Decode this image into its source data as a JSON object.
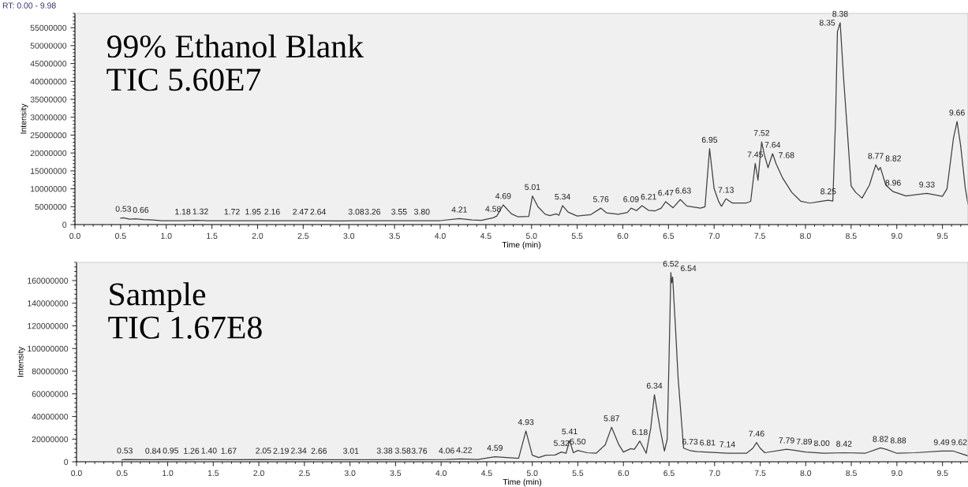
{
  "chart_data": [
    {
      "type": "line",
      "ylabel": "Intensity",
      "xlabel": "Time (min)",
      "grid": false,
      "marker": "none",
      "line_style": "solid",
      "xlim": [
        0,
        9.78
      ],
      "xticks": [
        {
          "value": 0,
          "label": "0.0"
        },
        0.5,
        {
          "value": 1,
          "label": "1.0"
        },
        1.5,
        {
          "value": 2,
          "label": "2.0"
        },
        2.5,
        {
          "value": 3,
          "label": "3.0"
        },
        3.5,
        {
          "value": 4,
          "label": "4.0"
        },
        4.5,
        {
          "value": 5,
          "label": "5.0"
        },
        5.5,
        {
          "value": 6,
          "label": "6.0"
        },
        6.5,
        {
          "value": 7,
          "label": "7.0"
        },
        7.5,
        {
          "value": 8,
          "label": "8.0"
        },
        8.5,
        {
          "value": 9,
          "label": "9.0"
        },
        9.5
      ],
      "ylim": [
        0,
        59000000
      ],
      "yticks": [
        0,
        5000000,
        10000000,
        15000000,
        20000000,
        25000000,
        30000000,
        35000000,
        40000000,
        45000000,
        50000000,
        55000000
      ],
      "series": [
        {
          "color": "#404040",
          "x": [
            0.5,
            0.53,
            0.6,
            0.66,
            0.75,
            0.85,
            0.95,
            1.18,
            1.32,
            1.45,
            1.72,
            1.95,
            2.16,
            2.47,
            2.64,
            2.9,
            3.08,
            3.26,
            3.55,
            3.8,
            4.0,
            4.21,
            4.35,
            4.45,
            4.58,
            4.62,
            4.69,
            4.78,
            4.85,
            4.97,
            5.01,
            5.07,
            5.15,
            5.2,
            5.27,
            5.3,
            5.34,
            5.4,
            5.5,
            5.65,
            5.76,
            5.82,
            5.95,
            6.05,
            6.09,
            6.15,
            6.21,
            6.28,
            6.35,
            6.42,
            6.47,
            6.55,
            6.63,
            6.7,
            6.85,
            6.9,
            6.95,
            7.0,
            7.05,
            7.08,
            7.13,
            7.2,
            7.35,
            7.4,
            7.45,
            7.48,
            7.52,
            7.55,
            7.59,
            7.64,
            7.68,
            7.75,
            7.85,
            7.95,
            8.05,
            8.15,
            8.25,
            8.3,
            8.33,
            8.35,
            8.38,
            8.42,
            8.45,
            8.5,
            8.55,
            8.62,
            8.7,
            8.77,
            8.8,
            8.82,
            8.88,
            8.96,
            9.1,
            9.33,
            9.5,
            9.55,
            9.62,
            9.66,
            9.7,
            9.75,
            9.78
          ],
          "values": [
            1800000.0,
            1900000.0,
            1500000.0,
            1600000.0,
            1400000.0,
            1300000.0,
            1100000.0,
            1100000.0,
            1200000.0,
            1100000.0,
            1100000.0,
            1100000.0,
            1100000.0,
            1100000.0,
            1100000.0,
            1000000.0,
            1100000.0,
            1100000.0,
            1100000.0,
            1100000.0,
            1100000.0,
            1700000.0,
            1300000.0,
            1200000.0,
            1900000.0,
            2400000.0,
            5500000.0,
            3000000.0,
            2200000.0,
            2300000.0,
            8000000.0,
            5000000.0,
            2900000.0,
            2500000.0,
            3000000.0,
            2600000.0,
            5300000.0,
            3500000.0,
            2400000.0,
            2800000.0,
            4600000.0,
            3300000.0,
            2900000.0,
            3400000.0,
            4600000.0,
            3900000.0,
            5300000.0,
            4000000.0,
            3800000.0,
            4600000.0,
            6400000.0,
            4700000.0,
            7000000.0,
            5200000.0,
            4600000.0,
            5000000.0,
            21200000.0,
            10000000.0,
            6400000.0,
            5100000.0,
            7200000.0,
            6000000.0,
            6000000.0,
            6500000.0,
            17100000.0,
            12400000.0,
            23100000.0,
            19500000.0,
            15900000.0,
            19800000.0,
            16900000.0,
            13000000.0,
            9000000.0,
            6500000.0,
            6000000.0,
            6400000.0,
            6800000.0,
            6600000.0,
            30000000.0,
            53900000.0,
            56400000.0,
            40000000.0,
            29300000.0,
            10800000.0,
            9000000.0,
            7400000.0,
            11000000.0,
            16700000.0,
            15200000.0,
            16000000.0,
            11000000.0,
            9200000.0,
            8000000.0,
            8700000.0,
            7900000.0,
            10000000.0,
            24000000.0,
            28800000.0,
            22000000.0,
            10200000.0,
            5700000.0
          ]
        }
      ],
      "annotations": [
        "99% Ethanol Blank\nTIC 5.60E7",
        "RT: 0.00 - 9.98",
        {
          "text": "0.53",
          "x": 0.53,
          "y": 1900000.0
        },
        {
          "text": "0.66",
          "x": 0.66,
          "y": 1600000.0
        },
        {
          "text": "1.18",
          "x": 1.18,
          "y": 1100000.0
        },
        {
          "text": "1.32",
          "x": 1.32,
          "y": 1200000.0
        },
        {
          "text": "1.72",
          "x": 1.72,
          "y": 1100000.0
        },
        {
          "text": "1.95",
          "x": 1.95,
          "y": 1100000.0
        },
        {
          "text": "2.16",
          "x": 2.16,
          "y": 1100000.0
        },
        {
          "text": "2.47",
          "x": 2.47,
          "y": 1100000.0
        },
        {
          "text": "2.64",
          "x": 2.64,
          "y": 1100000.0
        },
        {
          "text": "3.08",
          "x": 3.08,
          "y": 1100000.0
        },
        {
          "text": "3.26",
          "x": 3.26,
          "y": 1100000.0
        },
        {
          "text": "3.55",
          "x": 3.55,
          "y": 1100000.0
        },
        {
          "text": "3.80",
          "x": 3.8,
          "y": 1100000.0
        },
        {
          "text": "4.21",
          "x": 4.21,
          "y": 1700000.0
        },
        {
          "text": "4.58",
          "x": 4.58,
          "y": 1900000.0
        },
        {
          "text": "4.69",
          "x": 4.69,
          "y": 5500000.0
        },
        {
          "text": "5.01",
          "x": 5.01,
          "y": 8000000.0
        },
        {
          "text": "5.34",
          "x": 5.34,
          "y": 5300000.0
        },
        {
          "text": "5.76",
          "x": 5.76,
          "y": 4600000.0
        },
        {
          "text": "6.09",
          "x": 6.09,
          "y": 4600000.0
        },
        {
          "text": "6.21",
          "x": 6.21,
          "y": 5300000.0
        },
        {
          "text": "6.47",
          "x": 6.47,
          "y": 6400000.0
        },
        {
          "text": "6.63",
          "x": 6.63,
          "y": 7000000.0
        },
        {
          "text": "6.95",
          "x": 6.95,
          "y": 21200000.0
        },
        {
          "text": "7.13",
          "x": 7.13,
          "y": 7200000.0
        },
        {
          "text": "7.45",
          "x": 7.45,
          "y": 17100000.0
        },
        {
          "text": "7.52",
          "x": 7.52,
          "y": 23100000.0
        },
        {
          "text": "7.64",
          "x": 7.64,
          "y": 19800000.0
        },
        {
          "text": "7.68",
          "x": 7.68,
          "y": 16900000.0
        },
        {
          "text": "8.25",
          "x": 8.25,
          "y": 6800000.0
        },
        {
          "text": "8.35",
          "x": 8.35,
          "y": 53900000.0
        },
        {
          "text": "8.38",
          "x": 8.38,
          "y": 56400000.0
        },
        {
          "text": "8.77",
          "x": 8.77,
          "y": 16700000.0
        },
        {
          "text": "8.82",
          "x": 8.82,
          "y": 16000000.0
        },
        {
          "text": "8.96",
          "x": 8.96,
          "y": 9200000.0
        },
        {
          "text": "9.33",
          "x": 9.33,
          "y": 8700000.0
        },
        {
          "text": "9.66",
          "x": 9.66,
          "y": 28800000.0
        }
      ]
    },
    {
      "type": "line",
      "ylabel": "Intensity",
      "xlabel": "Time (min)",
      "grid": false,
      "marker": "none",
      "line_style": "solid",
      "xlim": [
        0,
        9.78
      ],
      "xticks": [
        {
          "value": 0,
          "label": "0.0"
        },
        0.5,
        {
          "value": 1,
          "label": "1.0"
        },
        1.5,
        {
          "value": 2,
          "label": "2.0"
        },
        2.5,
        {
          "value": 3,
          "label": "3.0"
        },
        3.5,
        {
          "value": 4,
          "label": "4.0"
        },
        4.5,
        {
          "value": 5,
          "label": "5.0"
        },
        5.5,
        {
          "value": 6,
          "label": "6.0"
        },
        6.5,
        {
          "value": 7,
          "label": "7.0"
        },
        7.5,
        {
          "value": 8,
          "label": "8.0"
        },
        8.5,
        {
          "value": 9,
          "label": "9.0"
        },
        9.5
      ],
      "ylim": [
        0,
        176000000
      ],
      "yticks": [
        0,
        20000000,
        40000000,
        60000000,
        80000000,
        100000000,
        120000000,
        140000000,
        160000000
      ],
      "series": [
        {
          "color": "#404040",
          "x": [
            0.5,
            0.53,
            0.84,
            0.95,
            1.26,
            1.4,
            1.67,
            2.05,
            2.19,
            2.34,
            2.66,
            3.01,
            3.38,
            3.58,
            3.76,
            4.06,
            4.22,
            4.4,
            4.59,
            4.85,
            4.93,
            5.0,
            5.07,
            5.15,
            5.25,
            5.32,
            5.37,
            5.41,
            5.45,
            5.5,
            5.6,
            5.7,
            5.8,
            5.87,
            5.95,
            6.0,
            6.08,
            6.12,
            6.18,
            6.25,
            6.3,
            6.34,
            6.4,
            6.45,
            6.48,
            6.5,
            6.52,
            6.53,
            6.54,
            6.57,
            6.6,
            6.66,
            6.73,
            6.81,
            6.9,
            7.14,
            7.35,
            7.42,
            7.46,
            7.5,
            7.55,
            7.79,
            7.89,
            8.0,
            8.2,
            8.42,
            8.65,
            8.82,
            8.88,
            9.0,
            9.2,
            9.49,
            9.62,
            9.78
          ],
          "values": [
            1700000.0,
            2000000.0,
            1800000.0,
            2000000.0,
            1800000.0,
            2000000.0,
            1800000.0,
            2000000.0,
            1800000.0,
            2000000.0,
            1800000.0,
            1800000.0,
            1900000.0,
            1900000.0,
            1800000.0,
            2000000.0,
            2500000.0,
            2000000.0,
            4400000.0,
            3100000.0,
            27200000.0,
            5800000.0,
            3800000.0,
            5800000.0,
            6000000.0,
            8600000.0,
            7500000.0,
            18900000.0,
            8000000.0,
            10000000.0,
            8000000.0,
            7500000.0,
            15000000.0,
            30500000.0,
            15000000.0,
            8600000.0,
            11600000.0,
            11000000.0,
            18300000.0,
            7500000.0,
            30000000.0,
            59300000.0,
            30000000.0,
            9500000.0,
            20000000.0,
            90000000.0,
            167000000.0,
            158000000.0,
            163000000.0,
            120000000.0,
            73800000.0,
            12000000.0,
            9900000.0,
            9000000.0,
            8600000.0,
            7500000.0,
            7500000.0,
            12000000.0,
            17000000.0,
            12000000.0,
            8000000.0,
            11000000.0,
            10000000.0,
            8600000.0,
            7500000.0,
            8000000.0,
            7500000.0,
            12300000.0,
            11000000.0,
            7500000.0,
            8000000.0,
            9400000.0,
            9400000.0,
            5200000.0
          ]
        }
      ],
      "annotations": [
        "Sample\nTIC 1.67E8",
        {
          "text": "0.53",
          "x": 0.53,
          "y": 2000000.0
        },
        {
          "text": "0.84",
          "x": 0.84,
          "y": 1800000.0
        },
        {
          "text": "0.95",
          "x": 0.95,
          "y": 2000000.0
        },
        {
          "text": "1.26",
          "x": 1.26,
          "y": 1800000.0
        },
        {
          "text": "1.40",
          "x": 1.4,
          "y": 2000000.0
        },
        {
          "text": "1.67",
          "x": 1.67,
          "y": 1800000.0
        },
        {
          "text": "2.05",
          "x": 2.05,
          "y": 2000000.0
        },
        {
          "text": "2.19",
          "x": 2.19,
          "y": 1800000.0
        },
        {
          "text": "2.34",
          "x": 2.34,
          "y": 2000000.0
        },
        {
          "text": "2.66",
          "x": 2.66,
          "y": 1800000.0
        },
        {
          "text": "3.01",
          "x": 3.01,
          "y": 1800000.0
        },
        {
          "text": "3.38",
          "x": 3.38,
          "y": 1900000.0
        },
        {
          "text": "3.58",
          "x": 3.58,
          "y": 1900000.0
        },
        {
          "text": "3.76",
          "x": 3.76,
          "y": 1800000.0
        },
        {
          "text": "4.06",
          "x": 4.06,
          "y": 2000000.0
        },
        {
          "text": "4.22",
          "x": 4.22,
          "y": 2500000.0
        },
        {
          "text": "4.59",
          "x": 4.59,
          "y": 4400000.0
        },
        {
          "text": "4.93",
          "x": 4.93,
          "y": 27200000.0
        },
        {
          "text": "5.32",
          "x": 5.32,
          "y": 8600000.0
        },
        {
          "text": "5.41",
          "x": 5.41,
          "y": 18900000.0
        },
        {
          "text": "5.50",
          "x": 5.5,
          "y": 10000000.0
        },
        {
          "text": "5.87",
          "x": 5.87,
          "y": 30500000.0
        },
        {
          "text": "6.18",
          "x": 6.18,
          "y": 18300000.0
        },
        {
          "text": "6.34",
          "x": 6.34,
          "y": 59300000.0
        },
        {
          "text": "6.52",
          "x": 6.52,
          "y": 167000000.0
        },
        {
          "text": "6.54",
          "x": 6.54,
          "y": 163000000.0
        },
        {
          "text": "6.73",
          "x": 6.73,
          "y": 9900000.0
        },
        {
          "text": "6.81",
          "x": 6.81,
          "y": 9000000.0
        },
        {
          "text": "7.14",
          "x": 7.14,
          "y": 7500000.0
        },
        {
          "text": "7.46",
          "x": 7.46,
          "y": 17000000.0
        },
        {
          "text": "7.79",
          "x": 7.79,
          "y": 11000000.0
        },
        {
          "text": "7.89",
          "x": 7.89,
          "y": 10000000.0
        },
        {
          "text": "8.00",
          "x": 8.0,
          "y": 8600000.0
        },
        {
          "text": "8.42",
          "x": 8.42,
          "y": 8000000.0
        },
        {
          "text": "8.82",
          "x": 8.82,
          "y": 12300000.0
        },
        {
          "text": "8.88",
          "x": 8.88,
          "y": 11000000.0
        },
        {
          "text": "9.49",
          "x": 9.49,
          "y": 9400000.0
        },
        {
          "text": "9.62",
          "x": 9.62,
          "y": 9400000.0
        }
      ]
    }
  ]
}
